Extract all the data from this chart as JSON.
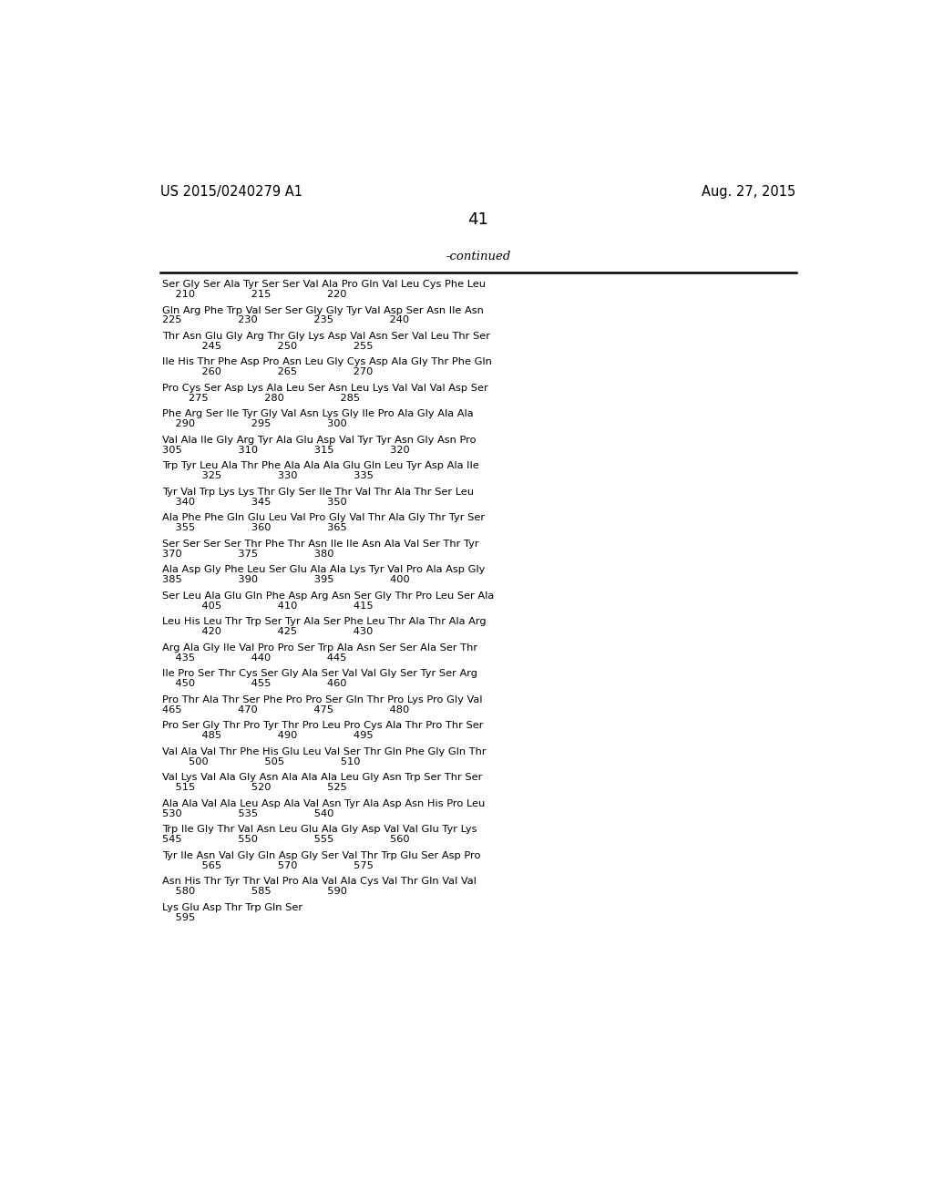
{
  "header_left": "US 2015/0240279 A1",
  "header_right": "Aug. 27, 2015",
  "page_number": "41",
  "continued_label": "-continued",
  "background_color": "#ffffff",
  "text_color": "#000000",
  "seq_data": [
    [
      "Ser Gly Ser Ala Tyr Ser Ser Val Ala Pro Gln Val Leu Cys Phe Leu",
      "    210                 215                 220"
    ],
    [
      "Gln Arg Phe Trp Val Ser Ser Gly Gly Tyr Val Asp Ser Asn Ile Asn",
      "225                 230                 235                 240"
    ],
    [
      "Thr Asn Glu Gly Arg Thr Gly Lys Asp Val Asn Ser Val Leu Thr Ser",
      "            245                 250                 255"
    ],
    [
      "Ile His Thr Phe Asp Pro Asn Leu Gly Cys Asp Ala Gly Thr Phe Gln",
      "            260                 265                 270"
    ],
    [
      "Pro Cys Ser Asp Lys Ala Leu Ser Asn Leu Lys Val Val Val Asp Ser",
      "        275                 280                 285"
    ],
    [
      "Phe Arg Ser Ile Tyr Gly Val Asn Lys Gly Ile Pro Ala Gly Ala Ala",
      "    290                 295                 300"
    ],
    [
      "Val Ala Ile Gly Arg Tyr Ala Glu Asp Val Tyr Tyr Asn Gly Asn Pro",
      "305                 310                 315                 320"
    ],
    [
      "Trp Tyr Leu Ala Thr Phe Ala Ala Ala Glu Gln Leu Tyr Asp Ala Ile",
      "            325                 330                 335"
    ],
    [
      "Tyr Val Trp Lys Lys Thr Gly Ser Ile Thr Val Thr Ala Thr Ser Leu",
      "    340                 345                 350"
    ],
    [
      "Ala Phe Phe Gln Glu Leu Val Pro Gly Val Thr Ala Gly Thr Tyr Ser",
      "    355                 360                 365"
    ],
    [
      "Ser Ser Ser Ser Thr Phe Thr Asn Ile Ile Asn Ala Val Ser Thr Tyr",
      "370                 375                 380"
    ],
    [
      "Ala Asp Gly Phe Leu Ser Glu Ala Ala Lys Tyr Val Pro Ala Asp Gly",
      "385                 390                 395                 400"
    ],
    [
      "Ser Leu Ala Glu Gln Phe Asp Arg Asn Ser Gly Thr Pro Leu Ser Ala",
      "            405                 410                 415"
    ],
    [
      "Leu His Leu Thr Trp Ser Tyr Ala Ser Phe Leu Thr Ala Thr Ala Arg",
      "            420                 425                 430"
    ],
    [
      "Arg Ala Gly Ile Val Pro Pro Ser Trp Ala Asn Ser Ser Ala Ser Thr",
      "    435                 440                 445"
    ],
    [
      "Ile Pro Ser Thr Cys Ser Gly Ala Ser Val Val Gly Ser Tyr Ser Arg",
      "    450                 455                 460"
    ],
    [
      "Pro Thr Ala Thr Ser Phe Pro Pro Ser Gln Thr Pro Lys Pro Gly Val",
      "465                 470                 475                 480"
    ],
    [
      "Pro Ser Gly Thr Pro Tyr Thr Pro Leu Pro Cys Ala Thr Pro Thr Ser",
      "            485                 490                 495"
    ],
    [
      "Val Ala Val Thr Phe His Glu Leu Val Ser Thr Gln Phe Gly Gln Thr",
      "        500                 505                 510"
    ],
    [
      "Val Lys Val Ala Gly Asn Ala Ala Ala Leu Gly Asn Trp Ser Thr Ser",
      "    515                 520                 525"
    ],
    [
      "Ala Ala Val Ala Leu Asp Ala Val Asn Tyr Ala Asp Asn His Pro Leu",
      "530                 535                 540"
    ],
    [
      "Trp Ile Gly Thr Val Asn Leu Glu Ala Gly Asp Val Val Glu Tyr Lys",
      "545                 550                 555                 560"
    ],
    [
      "Tyr Ile Asn Val Gly Gln Asp Gly Ser Val Thr Trp Glu Ser Asp Pro",
      "            565                 570                 575"
    ],
    [
      "Asn His Thr Tyr Thr Val Pro Ala Val Ala Cys Val Thr Gln Val Val",
      "    580                 585                 590"
    ],
    [
      "Lys Glu Asp Thr Trp Gln Ser",
      "    595"
    ]
  ]
}
